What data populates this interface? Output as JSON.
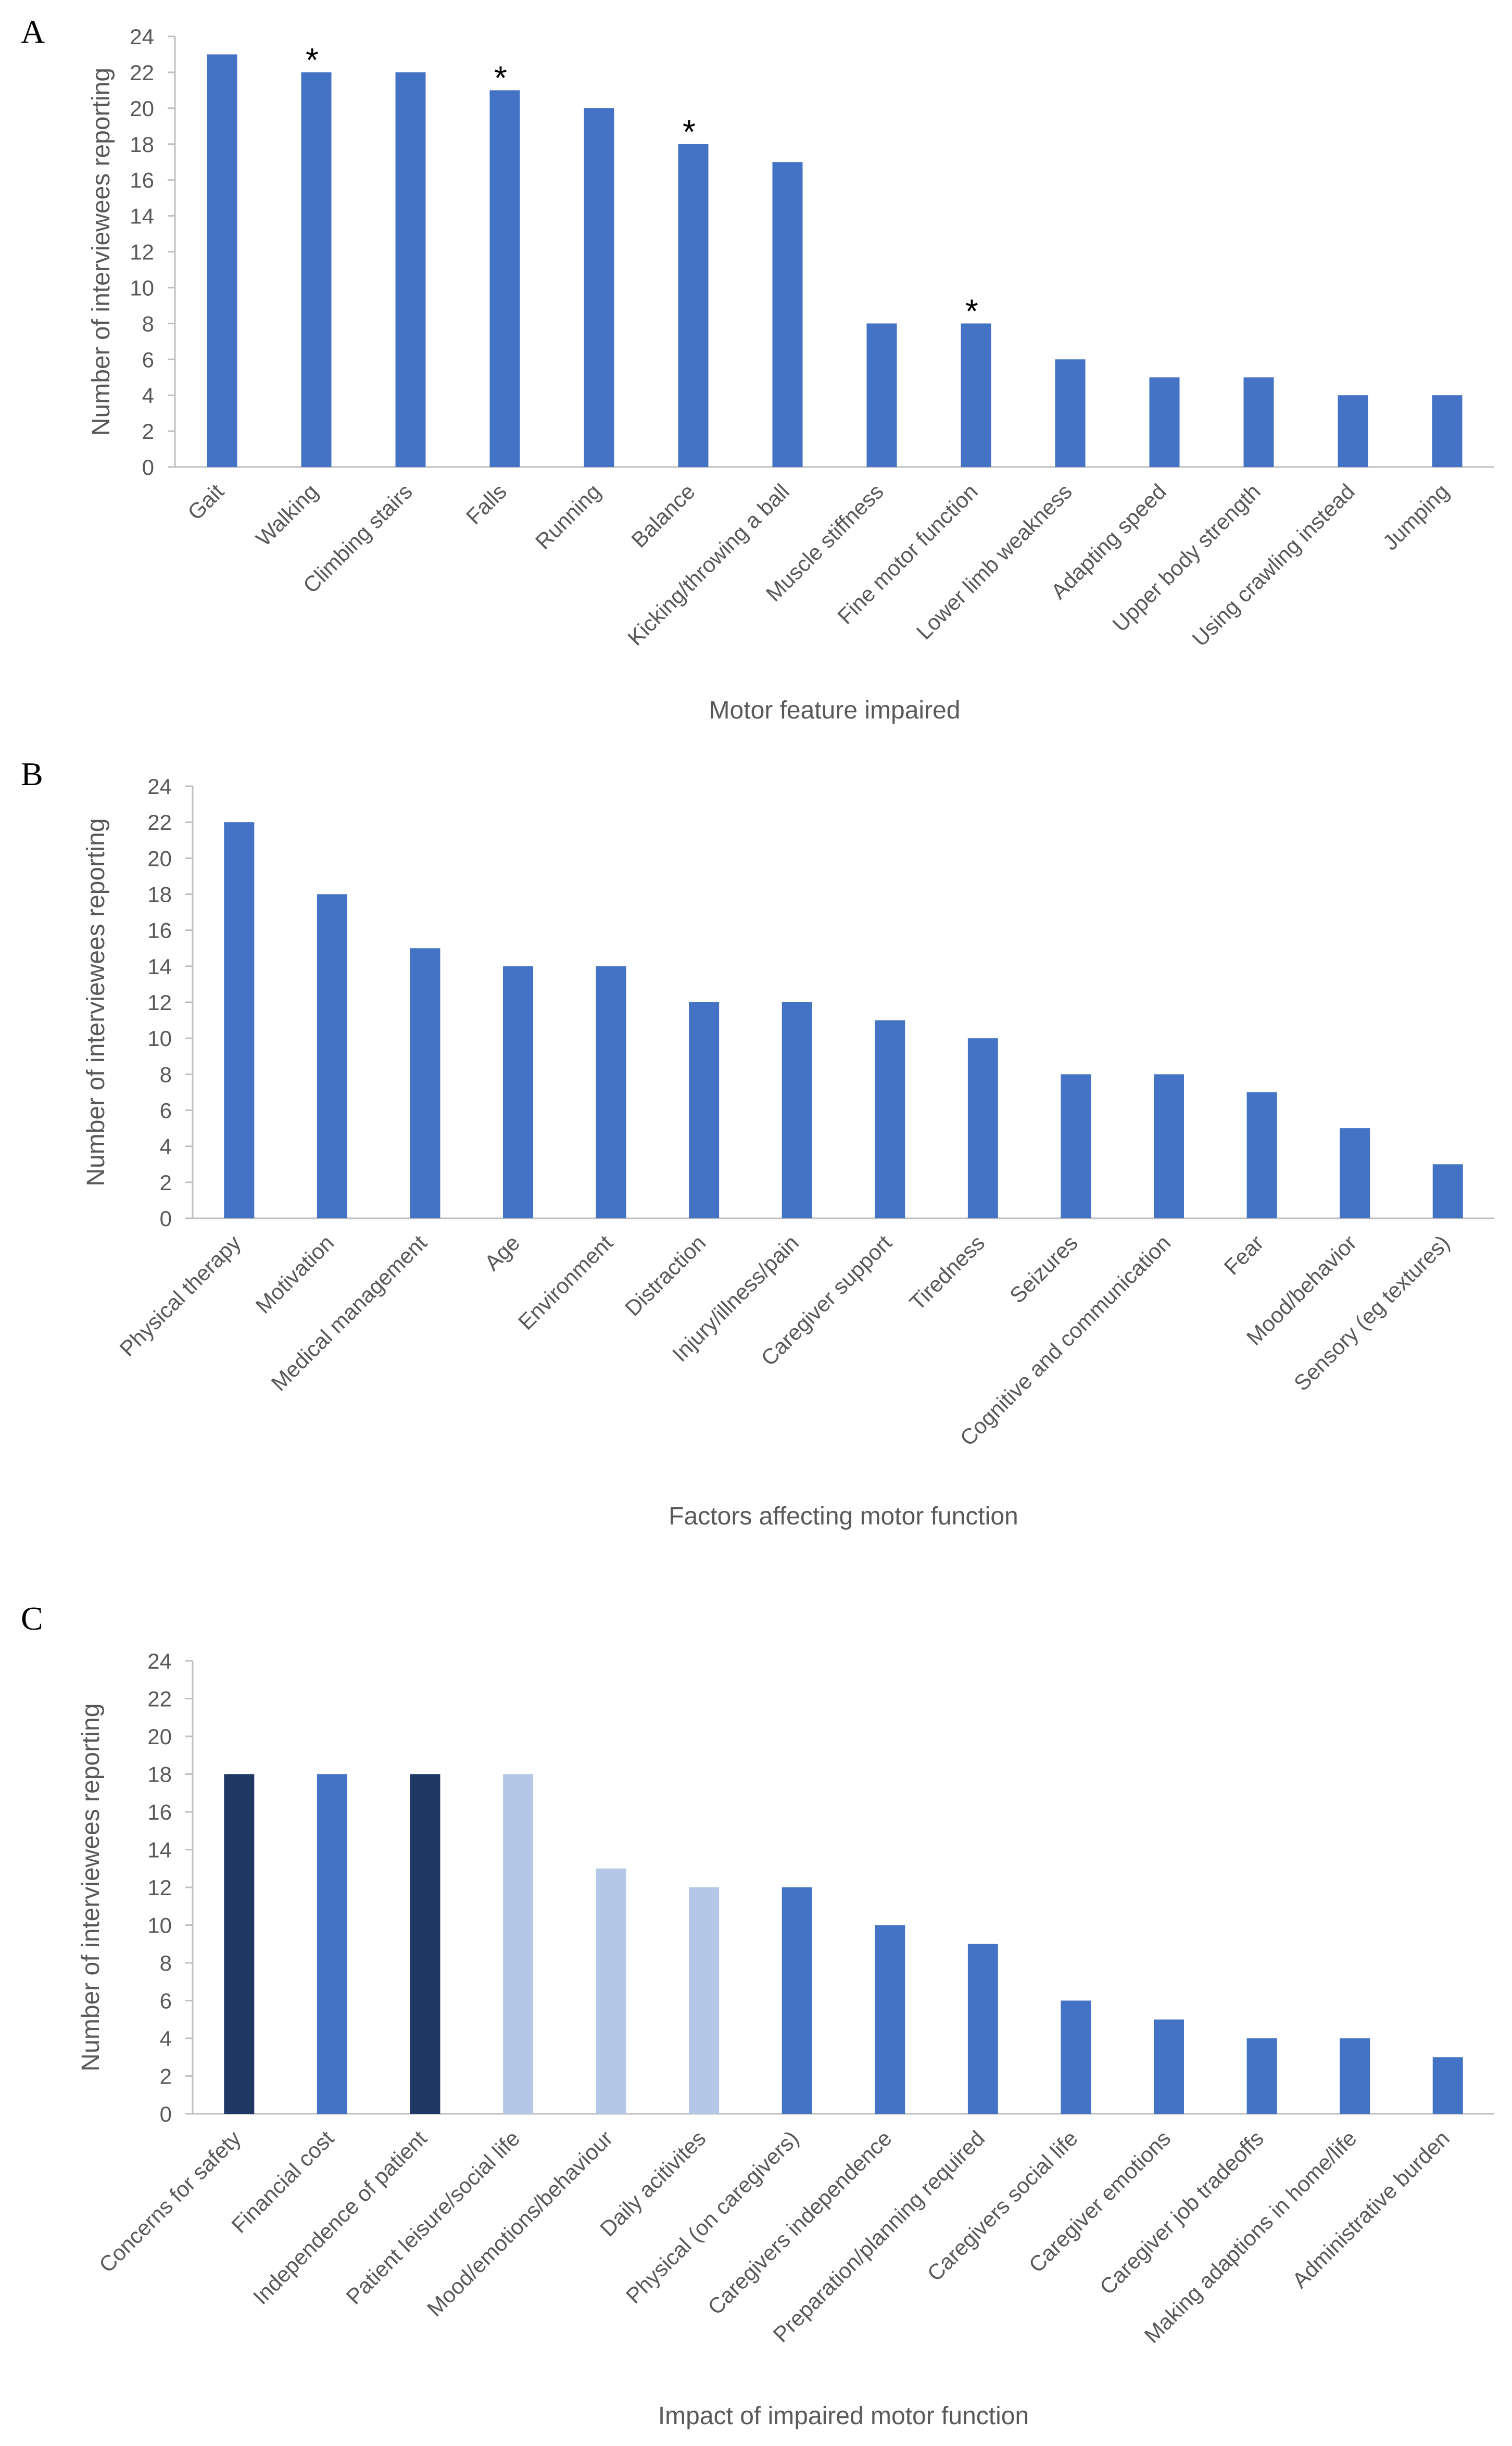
{
  "colors": {
    "axis": "#bfbfbf",
    "text": "#595959"
  },
  "chart_data": [
    {
      "type": "bar",
      "panel": "A",
      "categories": [
        "Gait",
        "Walking",
        "Climbing stairs",
        "Falls",
        "Running",
        "Balance",
        "Kicking/throwing a ball",
        "Muscle stiffness",
        "Fine motor function",
        "Lower limb weakness",
        "Adapting speed",
        "Upper body strength",
        "Using crawling instead",
        "Jumping"
      ],
      "values": [
        23,
        22,
        22,
        21,
        20,
        18,
        17,
        8,
        8,
        6,
        5,
        5,
        4,
        4
      ],
      "colors": [
        "#4472c4",
        "#4472c4",
        "#4472c4",
        "#4472c4",
        "#4472c4",
        "#4472c4",
        "#4472c4",
        "#4472c4",
        "#4472c4",
        "#4472c4",
        "#4472c4",
        "#4472c4",
        "#4472c4",
        "#4472c4"
      ],
      "annotations": [
        "",
        "*",
        "",
        "*",
        "",
        "*",
        "",
        "",
        "*",
        "",
        "",
        "",
        "",
        ""
      ],
      "title": "",
      "xlabel": "Motor feature impaired",
      "ylabel": "Number of interviewees reporting",
      "ylim": [
        0,
        24
      ],
      "yticks": [
        "0",
        "2",
        "4",
        "6",
        "8",
        "10",
        "12",
        "14",
        "16",
        "18",
        "20",
        "22",
        "24"
      ],
      "grid": false
    },
    {
      "type": "bar",
      "panel": "B",
      "categories": [
        "Physical therapy",
        "Motivation",
        "Medical management",
        "Age",
        "Environment",
        "Distraction",
        "Injury/illness/pain",
        "Caregiver support",
        "Tiredness",
        "Seizures",
        "Cognitive and communication",
        "Fear",
        "Mood/behavior",
        "Sensory (eg textures)"
      ],
      "values": [
        22,
        18,
        15,
        14,
        14,
        12,
        12,
        11,
        10,
        8,
        8,
        7,
        5,
        3
      ],
      "colors": [
        "#4472c4",
        "#4472c4",
        "#4472c4",
        "#4472c4",
        "#4472c4",
        "#4472c4",
        "#4472c4",
        "#4472c4",
        "#4472c4",
        "#4472c4",
        "#4472c4",
        "#4472c4",
        "#4472c4",
        "#4472c4"
      ],
      "annotations": [
        "",
        "",
        "",
        "",
        "",
        "",
        "",
        "",
        "",
        "",
        "",
        "",
        "",
        ""
      ],
      "title": "",
      "xlabel": "Factors affecting motor function",
      "ylabel": "Number of interviewees reporting",
      "ylim": [
        0,
        24
      ],
      "yticks": [
        "0",
        "2",
        "4",
        "6",
        "8",
        "10",
        "12",
        "14",
        "16",
        "18",
        "20",
        "22",
        "24"
      ],
      "grid": false
    },
    {
      "type": "bar",
      "panel": "C",
      "categories": [
        "Concerns for safety",
        "Financial cost",
        "Independence of patient",
        "Patient leisure/social life",
        "Mood/emotions/behaviour",
        "Daily acitivites",
        "Physical (on caregivers)",
        "Caregivers independence",
        "Preparation/planning required",
        "Caregivers social life",
        "Caregiver emotions",
        "Caregiver job tradeoffs",
        "Making adaptions in home/life",
        "Administrative burden"
      ],
      "values": [
        18,
        18,
        18,
        18,
        13,
        12,
        12,
        10,
        9,
        6,
        5,
        4,
        4,
        3
      ],
      "colors": [
        "#203864",
        "#4472c4",
        "#203864",
        "#b4c7e7",
        "#b4c7e7",
        "#b4c7e7",
        "#4472c4",
        "#4472c4",
        "#4472c4",
        "#4472c4",
        "#4472c4",
        "#4472c4",
        "#4472c4",
        "#4472c4"
      ],
      "annotations": [
        "",
        "",
        "",
        "",
        "",
        "",
        "",
        "",
        "",
        "",
        "",
        "",
        "",
        ""
      ],
      "title": "",
      "xlabel": "Impact of impaired motor function",
      "ylabel": "Number of interviewees reporting",
      "ylim": [
        0,
        24
      ],
      "yticks": [
        "0",
        "2",
        "4",
        "6",
        "8",
        "10",
        "12",
        "14",
        "16",
        "18",
        "20",
        "22",
        "24"
      ],
      "grid": false
    }
  ]
}
